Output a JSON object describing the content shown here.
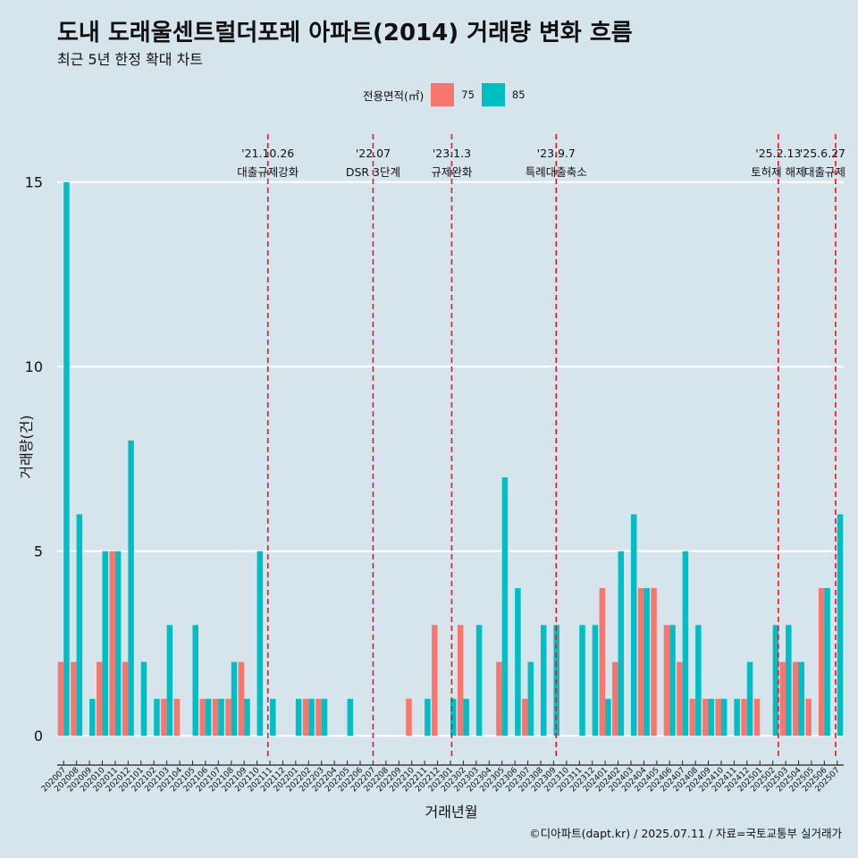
{
  "header": {
    "title": "도내 도래울센트럴더포레 아파트(2014) 거래량 변화 흐름",
    "subtitle": "최근 5년 한정 확대 차트"
  },
  "legend": {
    "title": "전용면적(㎡)",
    "items": [
      {
        "label": "75",
        "color": "#F8766D"
      },
      {
        "label": "85",
        "color": "#00BFC4"
      }
    ]
  },
  "caption": "©디아파트(dapt.kr) / 2025.07.11 / 자료=국토교통부 실거래가",
  "chart_data": {
    "type": "bar",
    "title": "도내 도래울센트럴더포레 아파트(2014) 거래량 변화 흐름",
    "xlabel": "거래년월",
    "ylabel": "거래량(건)",
    "ylim": [
      -0.6,
      16.3
    ],
    "yticks": [
      0,
      5,
      10,
      15
    ],
    "categories": [
      "202007",
      "202008",
      "202009",
      "202010",
      "202011",
      "202012",
      "202101",
      "202102",
      "202103",
      "202104",
      "202105",
      "202106",
      "202107",
      "202108",
      "202109",
      "202110",
      "202111",
      "202112",
      "202201",
      "202202",
      "202203",
      "202204",
      "202205",
      "202206",
      "202207",
      "202208",
      "202209",
      "202210",
      "202211",
      "202212",
      "202301",
      "202302",
      "202303",
      "202304",
      "202305",
      "202306",
      "202307",
      "202308",
      "202309",
      "202310",
      "202311",
      "202312",
      "202401",
      "202402",
      "202403",
      "202404",
      "202405",
      "202406",
      "202407",
      "202408",
      "202409",
      "202410",
      "202411",
      "202412",
      "202501",
      "202502",
      "202503",
      "202504",
      "202505",
      "202506",
      "202507"
    ],
    "series": [
      {
        "name": "75",
        "color": "#F8766D",
        "values": [
          2,
          2,
          0,
          2,
          5,
          2,
          0,
          0,
          1,
          1,
          0,
          1,
          1,
          1,
          2,
          0,
          0,
          0,
          0,
          1,
          1,
          0,
          0,
          0,
          0,
          0,
          0,
          1,
          0,
          3,
          0,
          3,
          0,
          0,
          2,
          0,
          1,
          0,
          0,
          0,
          0,
          0,
          4,
          2,
          0,
          4,
          4,
          3,
          2,
          1,
          1,
          1,
          0,
          1,
          1,
          0,
          2,
          2,
          1,
          4,
          0
        ]
      },
      {
        "name": "85",
        "color": "#00BFC4",
        "values": [
          15,
          6,
          1,
          5,
          5,
          8,
          2,
          1,
          3,
          0,
          3,
          1,
          1,
          2,
          1,
          5,
          1,
          0,
          1,
          1,
          1,
          0,
          1,
          0,
          0,
          0,
          0,
          0,
          1,
          0,
          1,
          1,
          3,
          0,
          7,
          4,
          2,
          3,
          3,
          0,
          3,
          3,
          1,
          5,
          6,
          4,
          0,
          3,
          5,
          3,
          1,
          1,
          1,
          2,
          0,
          3,
          3,
          2,
          0,
          4,
          6
        ]
      }
    ],
    "annotations": [
      {
        "date": "'21.10.26",
        "label": "대출규제강화",
        "x": "202110",
        "offset": 0.84
      },
      {
        "date": "'22.07",
        "label": "DSR 3단계",
        "x": "202207",
        "offset": 0.0
      },
      {
        "date": "'23.1.3",
        "label": "규제완화",
        "x": "202301",
        "offset": 0.1
      },
      {
        "date": "'23.9.7",
        "label": "특례대출축소",
        "x": "202309",
        "offset": 0.2
      },
      {
        "date": "'25.2.13",
        "label": "토허제 해제",
        "x": "202502",
        "offset": 0.43
      },
      {
        "date": "'25.6.27",
        "label": "대출규제",
        "x": "202506",
        "offset": 0.87
      }
    ]
  }
}
